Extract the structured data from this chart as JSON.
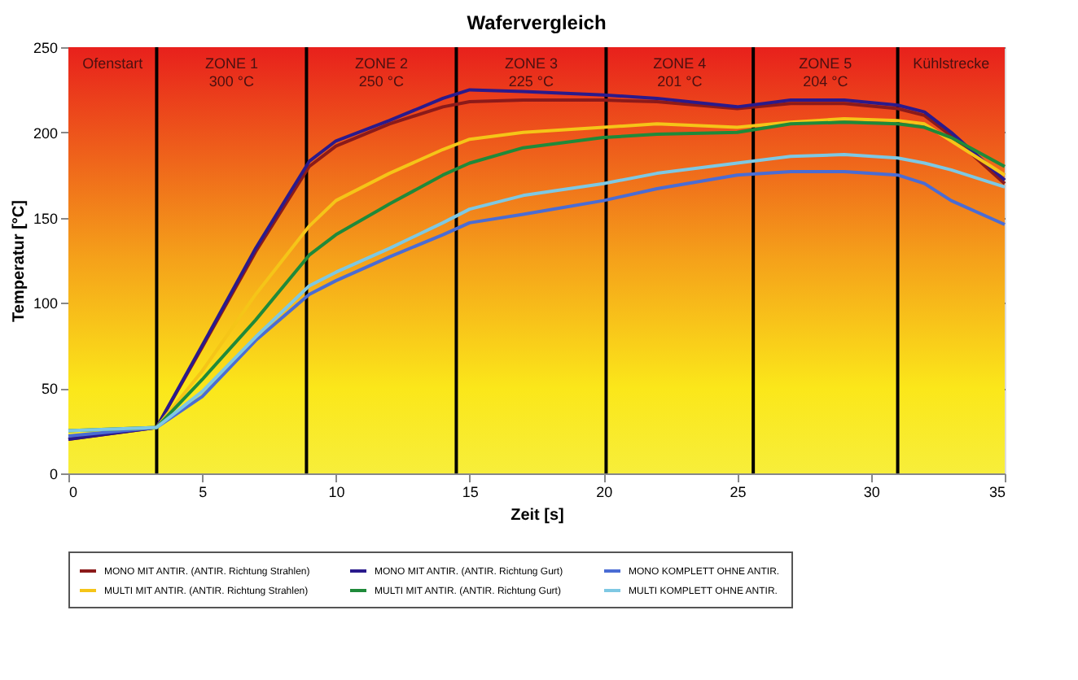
{
  "chart_data": {
    "type": "line",
    "title": "Wafervergleich",
    "xlabel": "Zeit [s]",
    "ylabel": "Temperatur [°C]",
    "xlim": [
      0,
      35
    ],
    "xticks": [
      0,
      5,
      10,
      15,
      20,
      25,
      30,
      35
    ],
    "ylim": [
      0,
      250
    ],
    "yticks": [
      0,
      50,
      100,
      150,
      200,
      250
    ],
    "grid": "y",
    "legend": "bottom",
    "line_style": "solid",
    "marker": "none",
    "ref_lines": [
      {
        "axis": "x",
        "value": 3.3,
        "color": "#000000"
      },
      {
        "axis": "x",
        "value": 8.9,
        "color": "#000000"
      },
      {
        "axis": "x",
        "value": 14.5,
        "color": "#000000"
      },
      {
        "axis": "x",
        "value": 20.1,
        "color": "#000000"
      },
      {
        "axis": "x",
        "value": 25.6,
        "color": "#000000"
      },
      {
        "axis": "x",
        "value": 31.0,
        "color": "#000000"
      }
    ],
    "annotations": [
      "Ofenstart",
      "ZONE 1\n300 °C",
      "ZONE 2\n250 °C",
      "ZONE 3\n225 °C",
      "ZONE 4\n201 °C",
      "ZONE 5\n204 °C",
      "Kühlstrecke"
    ],
    "x": [
      0,
      3.3,
      5,
      7,
      9,
      10,
      12,
      14,
      15,
      17,
      20,
      22,
      25,
      27,
      29,
      31,
      32,
      33,
      35
    ],
    "series": [
      {
        "name": "MONO MIT ANTIR. (ANTIR. Richtung Strahlen)",
        "color": "#8b1a1a",
        "values": [
          20,
          27,
          74,
          130,
          180,
          192,
          205,
          215,
          218,
          219,
          219,
          218,
          214,
          217,
          217,
          214,
          210,
          198,
          170
        ]
      },
      {
        "name": "MONO MIT ANTIR. (ANTIR. Richtung Gurt)",
        "color": "#2a1a8c",
        "values": [
          20,
          27,
          75,
          132,
          183,
          195,
          207,
          220,
          225,
          224,
          222,
          220,
          215,
          219,
          219,
          216,
          212,
          200,
          172
        ]
      },
      {
        "name": "MONO KOMPLETT OHNE ANTIR.",
        "color": "#4a6cd4",
        "values": [
          22,
          27,
          45,
          78,
          105,
          113,
          127,
          140,
          147,
          152,
          160,
          167,
          175,
          177,
          177,
          175,
          170,
          160,
          146
        ]
      },
      {
        "name": "MULTI MIT ANTIR. (ANTIR. Richtung Strahlen)",
        "color": "#f5c518",
        "values": [
          25,
          27,
          60,
          105,
          145,
          160,
          176,
          190,
          196,
          200,
          203,
          205,
          203,
          206,
          208,
          207,
          205,
          195,
          175
        ]
      },
      {
        "name": "MULTI MIT ANTIR. (ANTIR. Richtung Gurt)",
        "color": "#1f8a3a",
        "values": [
          25,
          27,
          55,
          90,
          128,
          140,
          158,
          175,
          182,
          191,
          197,
          199,
          200,
          205,
          206,
          205,
          203,
          197,
          180
        ]
      },
      {
        "name": "MULTI KOMPLETT OHNE ANTIR.",
        "color": "#7ec8e3",
        "values": [
          25,
          27,
          48,
          80,
          110,
          118,
          132,
          147,
          155,
          163,
          170,
          176,
          182,
          186,
          187,
          185,
          182,
          178,
          168
        ]
      }
    ]
  }
}
